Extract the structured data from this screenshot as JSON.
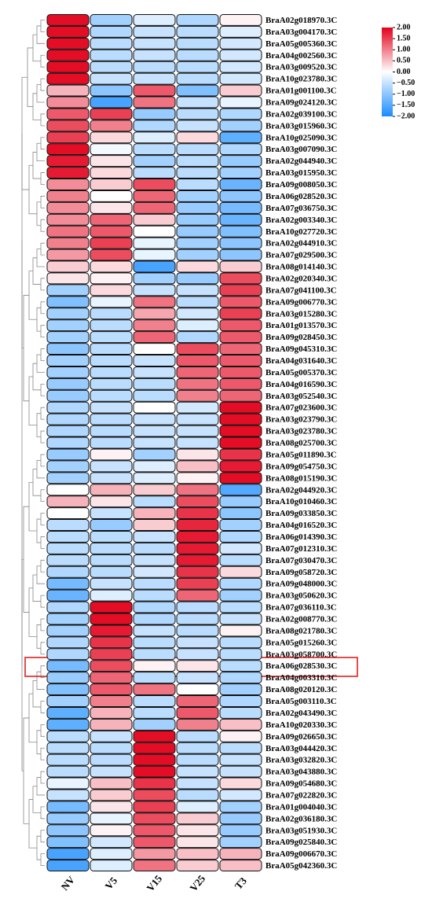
{
  "chart_data": {
    "type": "heatmap",
    "columns": [
      "NV",
      "V5",
      "V15",
      "V25",
      "T3"
    ],
    "rows": [
      "BraA02g018970.3C",
      "BraA03g004170.3C",
      "BraA05g005360.3C",
      "BraA04g002560.3C",
      "BraA03g009520.3C",
      "BraA10g023780.3C",
      "BraA01g001100.3C",
      "BraA09g024120.3C",
      "BraA02g039100.3C",
      "BraA03g015960.3C",
      "BraA10g025090.3C",
      "BraA03g007090.3C",
      "BraA02g044940.3C",
      "BraA03g015950.3C",
      "BraA09g008050.3C",
      "BraA06g028520.3C",
      "BraA07g036750.3C",
      "BraA02g003340.3C",
      "BraA10g027720.3C",
      "BraA02g044910.3C",
      "BraA07g029500.3C",
      "BraA08g014140.3C",
      "BraA02g020340.3C",
      "BraA07g041100.3C",
      "BraA09g006770.3C",
      "BraA03g015280.3C",
      "BraA01g013570.3C",
      "BraA09g028450.3C",
      "BraA09g045310.3C",
      "BraA04g031640.3C",
      "BraA05g005370.3C",
      "BraA04g016590.3C",
      "BraA03g052540.3C",
      "BraA07g023600.3C",
      "BraA03g023790.3C",
      "BraA03g023780.3C",
      "BraA08g025700.3C",
      "BraA05g011890.3C",
      "BraA09g054750.3C",
      "BraA08g015190.3C",
      "BraA02g044920.3C",
      "BraA10g010460.3C",
      "BraA09g033850.3C",
      "BraA04g016520.3C",
      "BraA06g014390.3C",
      "BraA07g012310.3C",
      "BraA07g030470.3C",
      "BraA09g058720.3C",
      "BraA09g048000.3C",
      "BraA03g050620.3C",
      "BraA07g036110.3C",
      "BraA02g008770.3C",
      "BraA08g021780.3C",
      "BraA05g015260.3C",
      "BraA03g058700.3C",
      "BraA06g028530.3C",
      "BraA04g003310.3C",
      "BraA08g020120.3C",
      "BraA05g003110.3C",
      "BraA02g043490.3C",
      "BraA10g020330.3C",
      "BraA09g026650.3C",
      "BraA03g044420.3C",
      "BraA03g032820.3C",
      "BraA03g043880.3C",
      "BraA09g054680.3C",
      "BraA07g022820.3C",
      "BraA01g004040.3C",
      "BraA02g036180.3C",
      "BraA03g051930.3C",
      "BraA09g025840.3C",
      "BraA09g006670.3C",
      "BraA05g042360.3C"
    ],
    "values": [
      [
        1.9,
        -0.8,
        -0.3,
        -0.7,
        0.1
      ],
      [
        1.9,
        -0.7,
        -0.5,
        -0.6,
        -0.3
      ],
      [
        1.9,
        -0.6,
        -0.5,
        -0.6,
        -0.4
      ],
      [
        1.9,
        -0.6,
        -0.5,
        -0.6,
        -0.4
      ],
      [
        1.9,
        -0.6,
        -0.6,
        -0.6,
        -0.4
      ],
      [
        1.9,
        -0.5,
        -0.5,
        -0.6,
        -0.4
      ],
      [
        0.6,
        -1.0,
        1.3,
        -1.1,
        0.4
      ],
      [
        0.9,
        -1.6,
        1.1,
        -0.5,
        -0.2
      ],
      [
        1.3,
        1.5,
        -0.9,
        -0.6,
        -0.7
      ],
      [
        1.4,
        1.0,
        -0.7,
        -0.5,
        -0.8
      ],
      [
        1.5,
        0.3,
        -0.3,
        0.3,
        -1.4
      ],
      [
        1.9,
        -0.1,
        -0.6,
        -0.6,
        -0.7
      ],
      [
        1.8,
        0.2,
        -0.8,
        -0.6,
        -0.9
      ],
      [
        1.8,
        0.3,
        -0.6,
        -0.6,
        -0.8
      ],
      [
        0.9,
        0.4,
        1.4,
        -0.6,
        -1.3
      ],
      [
        1.0,
        0.0,
        1.2,
        -0.8,
        -1.0
      ],
      [
        0.9,
        0.2,
        1.2,
        -0.9,
        -1.2
      ],
      [
        0.9,
        1.2,
        0.4,
        -0.9,
        -1.3
      ],
      [
        1.1,
        1.3,
        0.0,
        -0.9,
        -1.1
      ],
      [
        1.0,
        1.5,
        -0.2,
        -0.8,
        -1.0
      ],
      [
        0.8,
        1.4,
        -0.2,
        -0.8,
        -1.0
      ],
      [
        0.4,
        0.3,
        -1.6,
        0.3,
        0.4
      ],
      [
        0.2,
        0.1,
        -0.8,
        -0.9,
        1.4
      ],
      [
        -0.8,
        0.3,
        -0.5,
        -0.5,
        1.5
      ],
      [
        -1.1,
        -0.2,
        1.1,
        -0.6,
        1.3
      ],
      [
        -0.8,
        -0.6,
        0.7,
        -0.4,
        1.5
      ],
      [
        -0.8,
        -0.6,
        1.0,
        -0.3,
        1.3
      ],
      [
        -0.8,
        -0.6,
        1.2,
        -0.7,
        1.3
      ],
      [
        -1.0,
        -0.6,
        0.0,
        1.4,
        1.2
      ],
      [
        -0.8,
        -0.6,
        -0.5,
        1.3,
        1.3
      ],
      [
        -0.8,
        -0.6,
        -0.5,
        1.2,
        1.3
      ],
      [
        -0.9,
        -0.6,
        -0.6,
        1.1,
        1.3
      ],
      [
        -0.9,
        -0.6,
        -0.6,
        1.0,
        1.2
      ],
      [
        -0.7,
        -0.5,
        0.0,
        -0.4,
        1.9
      ],
      [
        -0.7,
        -0.6,
        -0.5,
        -0.5,
        1.9
      ],
      [
        -0.7,
        -0.6,
        -0.5,
        -0.5,
        1.9
      ],
      [
        -0.7,
        -0.6,
        -0.5,
        -0.5,
        1.9
      ],
      [
        -0.9,
        0.1,
        -0.8,
        0.2,
        1.6
      ],
      [
        -0.8,
        -0.5,
        -0.3,
        0.5,
        1.8
      ],
      [
        -0.8,
        -0.5,
        -0.3,
        0.1,
        1.9
      ],
      [
        0.0,
        0.6,
        0.4,
        1.1,
        -1.5
      ],
      [
        0.6,
        0.2,
        -0.6,
        1.4,
        -0.9
      ],
      [
        0.0,
        -0.5,
        0.6,
        1.6,
        -1.0
      ],
      [
        -0.6,
        -0.9,
        0.4,
        1.7,
        -0.8
      ],
      [
        -0.6,
        -0.6,
        -0.5,
        1.8,
        -0.7
      ],
      [
        -0.6,
        -0.6,
        -0.6,
        1.8,
        -0.4
      ],
      [
        -0.6,
        -0.6,
        -0.5,
        1.8,
        -0.6
      ],
      [
        -0.7,
        -0.6,
        -0.4,
        1.6,
        0.3
      ],
      [
        -1.2,
        -0.5,
        -0.6,
        1.5,
        -0.7
      ],
      [
        -1.3,
        -0.3,
        -0.6,
        1.2,
        -0.8
      ],
      [
        -0.7,
        1.9,
        -0.7,
        -0.6,
        -0.6
      ],
      [
        -0.8,
        1.9,
        -0.7,
        -0.6,
        -0.5
      ],
      [
        -0.8,
        1.8,
        -0.5,
        -0.6,
        0.1
      ],
      [
        -0.7,
        1.6,
        -0.6,
        -0.5,
        -0.6
      ],
      [
        -0.7,
        1.5,
        -0.6,
        -0.5,
        -0.6
      ],
      [
        -1.2,
        1.4,
        0.1,
        0.2,
        -0.6
      ],
      [
        -0.9,
        1.2,
        -0.6,
        -0.5,
        -0.7
      ],
      [
        -1.1,
        1.3,
        1.1,
        0.0,
        -0.8
      ],
      [
        -0.8,
        1.0,
        -0.6,
        1.2,
        -0.7
      ],
      [
        -1.4,
        0.6,
        -0.6,
        1.3,
        -0.6
      ],
      [
        -1.4,
        0.6,
        -0.8,
        1.0,
        0.5
      ],
      [
        -0.6,
        -0.5,
        1.9,
        -0.6,
        0.1
      ],
      [
        -0.6,
        -0.6,
        1.9,
        -0.6,
        -0.6
      ],
      [
        -0.6,
        -0.6,
        1.9,
        -0.6,
        -0.5
      ],
      [
        -0.6,
        -0.5,
        1.9,
        -0.5,
        -0.5
      ],
      [
        -0.2,
        0.5,
        1.6,
        -0.5,
        0.3
      ],
      [
        -0.5,
        0.4,
        1.4,
        -0.6,
        -0.4
      ],
      [
        -1.2,
        0.2,
        1.5,
        -0.3,
        -0.8
      ],
      [
        -0.9,
        -0.2,
        1.4,
        0.4,
        -0.9
      ],
      [
        -1.0,
        0.1,
        1.3,
        0.2,
        -0.9
      ],
      [
        -1.1,
        -0.4,
        1.3,
        0.2,
        -0.8
      ],
      [
        -1.6,
        -0.3,
        0.8,
        0.5,
        0.6
      ],
      [
        -1.6,
        -0.3,
        1.1,
        0.4,
        0.5
      ]
    ],
    "zlim": [
      -2,
      2
    ],
    "zticks": [
      {
        "value": 2,
        "label": "2.00"
      },
      {
        "value": 1.5,
        "label": "1.50"
      },
      {
        "value": 1,
        "label": "1.00"
      },
      {
        "value": 0.5,
        "label": "0.50"
      },
      {
        "value": 0,
        "label": "0.00"
      },
      {
        "value": -0.5,
        "label": "−0.50"
      },
      {
        "value": -1,
        "label": "−1.00"
      },
      {
        "value": -1.5,
        "label": "−1.50"
      },
      {
        "value": -2,
        "label": "−2.00"
      }
    ],
    "colors": [
      "#1a8cff",
      "#ffffff",
      "#e3001b"
    ]
  }
}
